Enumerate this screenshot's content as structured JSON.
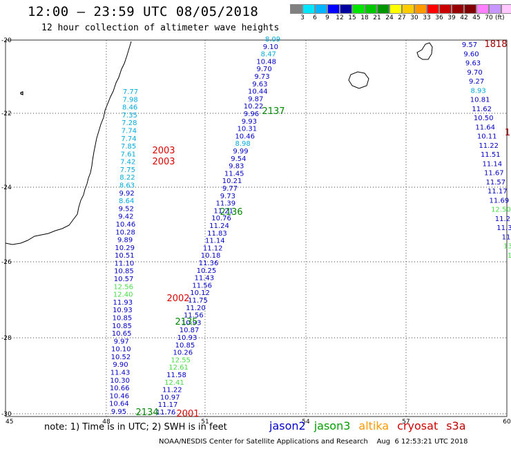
{
  "header": {
    "title": "12:00 – 23:59 UTC 08/05/2018",
    "subtitle": "12 hour collection of altimeter wave heights"
  },
  "legend": {
    "colors": [
      "#808080",
      "#00e6ff",
      "#00b4ff",
      "#0000ff",
      "#0000a0",
      "#00e600",
      "#00c800",
      "#009600",
      "#ffff00",
      "#ffcc00",
      "#ff9900",
      "#ff0000",
      "#c80000",
      "#960000",
      "#800000",
      "#ff80ff",
      "#c896ff",
      "#ffc8ff",
      "#000000"
    ],
    "ticks": [
      "3",
      "6",
      "9",
      "12",
      "15",
      "18",
      "21",
      "24",
      "27",
      "30",
      "33",
      "36",
      "39",
      "42",
      "45",
      "70"
    ],
    "unit": "(ft)"
  },
  "axes": {
    "lat_labels": [
      "-20",
      "-22",
      "-24",
      "-26",
      "-28",
      "-30"
    ],
    "lon_labels": [
      "45",
      "48",
      "51",
      "54",
      "57",
      "60"
    ]
  },
  "satellite_colors": {
    "jason2": "#0000c8",
    "jason3": "#00a000",
    "altika": "#ff9900",
    "cryosat": "#d00000",
    "s3a": "#c00000"
  },
  "tracks": {
    "track_2003": [
      {
        "v": "7.77",
        "c": "#00aadd"
      },
      {
        "v": "7.98",
        "c": "#00aadd"
      },
      {
        "v": "8.46",
        "c": "#00aadd"
      },
      {
        "v": "7.35",
        "c": "#00aadd"
      },
      {
        "v": "7.28",
        "c": "#00aadd"
      },
      {
        "v": "7.74",
        "c": "#00aadd"
      },
      {
        "v": "7.74",
        "c": "#00aadd"
      },
      {
        "v": "7.85",
        "c": "#00aadd"
      },
      {
        "v": "7.61",
        "c": "#00aadd"
      },
      {
        "v": "7.42",
        "c": "#00aadd"
      },
      {
        "v": "7.75",
        "c": "#00aadd"
      },
      {
        "v": "8.22",
        "c": "#00aadd"
      },
      {
        "v": "8.63",
        "c": "#00aadd"
      },
      {
        "v": "9.92",
        "c": "#0000c8"
      },
      {
        "v": "8.64",
        "c": "#00aadd"
      },
      {
        "v": "9.52",
        "c": "#0000c8"
      },
      {
        "v": "9.42",
        "c": "#0000c8"
      },
      {
        "v": "10.46",
        "c": "#0000c8"
      },
      {
        "v": "10.28",
        "c": "#0000c8"
      },
      {
        "v": "9.89",
        "c": "#0000c8"
      },
      {
        "v": "10.29",
        "c": "#0000c8"
      },
      {
        "v": "10.51",
        "c": "#0000c8"
      },
      {
        "v": "11.10",
        "c": "#0000c8"
      },
      {
        "v": "10.85",
        "c": "#0000c8"
      },
      {
        "v": "10.57",
        "c": "#0000c8"
      },
      {
        "v": "12.56",
        "c": "#44dd44"
      },
      {
        "v": "12.40",
        "c": "#44dd44"
      },
      {
        "v": "11.93",
        "c": "#0000c8"
      },
      {
        "v": "10.93",
        "c": "#0000c8"
      },
      {
        "v": "10.85",
        "c": "#0000c8"
      },
      {
        "v": "10.85",
        "c": "#0000c8"
      },
      {
        "v": "10.65",
        "c": "#0000c8"
      },
      {
        "v": "9.97",
        "c": "#0000c8"
      },
      {
        "v": "10.10",
        "c": "#0000c8"
      },
      {
        "v": "10.52",
        "c": "#0000c8"
      },
      {
        "v": "9.90",
        "c": "#0000c8"
      },
      {
        "v": "11.43",
        "c": "#0000c8"
      },
      {
        "v": "10.30",
        "c": "#0000c8"
      },
      {
        "v": "10.66",
        "c": "#0000c8"
      },
      {
        "v": "10.46",
        "c": "#0000c8"
      },
      {
        "v": "10.64",
        "c": "#0000c8"
      },
      {
        "v": "9.95",
        "c": "#0000c8"
      }
    ],
    "track_2136": [
      {
        "v": "8.09",
        "c": "#00aadd"
      },
      {
        "v": "9.10",
        "c": "#0000c8"
      },
      {
        "v": "8.47",
        "c": "#00aadd"
      },
      {
        "v": "10.48",
        "c": "#0000c8"
      },
      {
        "v": "9.70",
        "c": "#0000c8"
      },
      {
        "v": "9.73",
        "c": "#0000c8"
      },
      {
        "v": "9.63",
        "c": "#0000c8"
      },
      {
        "v": "10.44",
        "c": "#0000c8"
      },
      {
        "v": "9.87",
        "c": "#0000c8"
      },
      {
        "v": "10.22",
        "c": "#0000c8"
      },
      {
        "v": "9.96",
        "c": "#0000c8"
      },
      {
        "v": "9.93",
        "c": "#0000c8"
      },
      {
        "v": "10.31",
        "c": "#0000c8"
      },
      {
        "v": "10.46",
        "c": "#0000c8"
      },
      {
        "v": "8.98",
        "c": "#00aadd"
      },
      {
        "v": "9.99",
        "c": "#0000c8"
      },
      {
        "v": "9.54",
        "c": "#0000c8"
      },
      {
        "v": "9.83",
        "c": "#0000c8"
      },
      {
        "v": "11.45",
        "c": "#0000c8"
      },
      {
        "v": "10.21",
        "c": "#0000c8"
      },
      {
        "v": "9.77",
        "c": "#0000c8"
      },
      {
        "v": "9.73",
        "c": "#0000c8"
      },
      {
        "v": "11.39",
        "c": "#0000c8"
      },
      {
        "v": "11.21",
        "c": "#0000c8"
      },
      {
        "v": "10.76",
        "c": "#0000c8"
      },
      {
        "v": "11.24",
        "c": "#0000c8"
      },
      {
        "v": "11.83",
        "c": "#0000c8"
      },
      {
        "v": "11.14",
        "c": "#0000c8"
      },
      {
        "v": "11.12",
        "c": "#0000c8"
      },
      {
        "v": "10.18",
        "c": "#0000c8"
      },
      {
        "v": "11.36",
        "c": "#0000c8"
      },
      {
        "v": "10.25",
        "c": "#0000c8"
      },
      {
        "v": "11.43",
        "c": "#0000c8"
      },
      {
        "v": "11.56",
        "c": "#0000c8"
      },
      {
        "v": "10.12",
        "c": "#0000c8"
      },
      {
        "v": "11.75",
        "c": "#0000c8"
      },
      {
        "v": "11.20",
        "c": "#0000c8"
      },
      {
        "v": "11.56",
        "c": "#0000c8"
      },
      {
        "v": "10.93",
        "c": "#0000c8"
      },
      {
        "v": "10.87",
        "c": "#0000c8"
      },
      {
        "v": "10.93",
        "c": "#0000c8"
      },
      {
        "v": "10.85",
        "c": "#0000c8"
      },
      {
        "v": "10.26",
        "c": "#0000c8"
      },
      {
        "v": "12.55",
        "c": "#44dd44"
      },
      {
        "v": "12.61",
        "c": "#44dd44"
      },
      {
        "v": "11.58",
        "c": "#0000c8"
      },
      {
        "v": "12.41",
        "c": "#44dd44"
      },
      {
        "v": "11.22",
        "c": "#0000c8"
      },
      {
        "v": "10.97",
        "c": "#0000c8"
      },
      {
        "v": "11.17",
        "c": "#0000c8"
      },
      {
        "v": "11.76",
        "c": "#0000c8"
      }
    ],
    "track_1818": [
      {
        "v": "9.57",
        "c": "#0000c8"
      },
      {
        "v": "9.60",
        "c": "#0000c8"
      },
      {
        "v": "9.63",
        "c": "#0000c8"
      },
      {
        "v": "9.70",
        "c": "#0000c8"
      },
      {
        "v": "9.27",
        "c": "#0000c8"
      },
      {
        "v": "8.93",
        "c": "#00aadd"
      },
      {
        "v": "10.81",
        "c": "#0000c8"
      },
      {
        "v": "11.62",
        "c": "#0000c8"
      },
      {
        "v": "10.50",
        "c": "#0000c8"
      },
      {
        "v": "11.64",
        "c": "#0000c8"
      },
      {
        "v": "10.11",
        "c": "#0000c8"
      },
      {
        "v": "11.22",
        "c": "#0000c8"
      },
      {
        "v": "11.51",
        "c": "#0000c8"
      },
      {
        "v": "11.14",
        "c": "#0000c8"
      },
      {
        "v": "11.67",
        "c": "#0000c8"
      },
      {
        "v": "11.57",
        "c": "#0000c8"
      },
      {
        "v": "11.17",
        "c": "#0000c8"
      },
      {
        "v": "11.69",
        "c": "#0000c8"
      },
      {
        "v": "12.50",
        "c": "#44dd44"
      },
      {
        "v": "11.2",
        "c": "#0000c8"
      },
      {
        "v": "11.3",
        "c": "#0000c8"
      },
      {
        "v": "11",
        "c": "#0000c8"
      },
      {
        "v": "13",
        "c": "#44dd44"
      },
      {
        "v": "1",
        "c": "#44dd44"
      }
    ]
  },
  "time_labels": [
    {
      "t": "2003",
      "c": "#e00000"
    },
    {
      "t": "2003",
      "c": "#e00000"
    },
    {
      "t": "2137",
      "c": "#008800"
    },
    {
      "t": "2136",
      "c": "#008800"
    },
    {
      "t": "2002",
      "c": "#e00000"
    },
    {
      "t": "2135",
      "c": "#008800"
    },
    {
      "t": "2134",
      "c": "#008800"
    },
    {
      "t": "2001",
      "c": "#e00000"
    },
    {
      "t": "1818",
      "c": "#a00000"
    },
    {
      "t": "1",
      "c": "#a00000"
    }
  ],
  "note": "note: 1) Time is in UTC; 2) SWH is in feet",
  "satellites": [
    {
      "name": "jason2",
      "color": "#0000c8"
    },
    {
      "name": "jason3",
      "color": "#00a000"
    },
    {
      "name": "altika",
      "color": "#ff9900"
    },
    {
      "name": "cryosat",
      "color": "#d00000"
    },
    {
      "name": "s3a",
      "color": "#c00000"
    }
  ],
  "footer": "NOAA/NESDIS Center for Satellite Applications and Research    Aug  6 12:53:21 UTC 2018"
}
